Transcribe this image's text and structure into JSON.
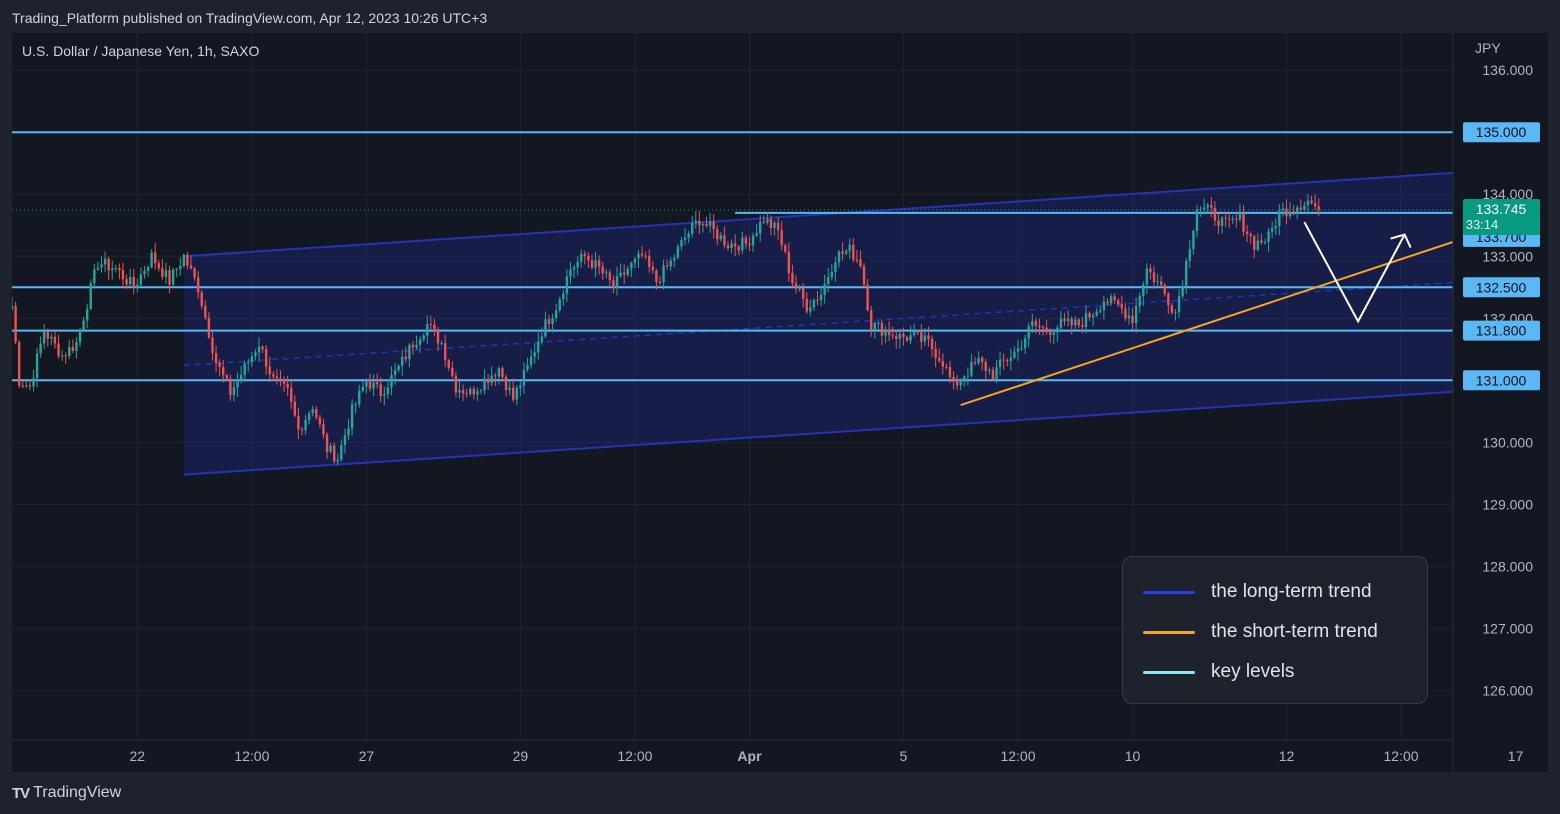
{
  "header": {
    "text": "Trading_Platform published on TradingView.com, Apr 12, 2023 10:26 UTC+3"
  },
  "footer": {
    "logo": "TV",
    "brand": "TradingView"
  },
  "chart_data": {
    "type": "candlestick",
    "symbol": "U.S. Dollar / Japanese Yen, 1h, SAXO",
    "currency": "JPY",
    "ylim": [
      125.2,
      136.6
    ],
    "y_ticks": [
      "136.000",
      "135.000",
      "134.000",
      "133.000",
      "132.000",
      "131.000",
      "130.000",
      "129.000",
      "128.000",
      "127.000",
      "126.000"
    ],
    "x_ticks": [
      {
        "label": "22",
        "i": 35,
        "bold": false
      },
      {
        "label": "12:00",
        "i": 67,
        "bold": false
      },
      {
        "label": "27",
        "i": 99,
        "bold": false
      },
      {
        "label": "29",
        "i": 142,
        "bold": false
      },
      {
        "label": "12:00",
        "i": 174,
        "bold": false
      },
      {
        "label": "Apr",
        "i": 206,
        "bold": true
      },
      {
        "label": "5",
        "i": 249,
        "bold": false
      },
      {
        "label": "12:00",
        "i": 281,
        "bold": false
      },
      {
        "label": "10",
        "i": 313,
        "bold": false
      },
      {
        "label": "12",
        "i": 356,
        "bold": false
      },
      {
        "label": "12:00",
        "i": 388,
        "bold": false
      },
      {
        "label": "17",
        "i": 420,
        "bold": false
      }
    ],
    "key_levels": [
      {
        "value": 135.0,
        "label": "135.000"
      },
      {
        "value": 133.7,
        "label": "133.700"
      },
      {
        "value": 132.5,
        "label": "132.500"
      },
      {
        "value": 131.8,
        "label": "131.800"
      },
      {
        "value": 131.0,
        "label": "131.000"
      }
    ],
    "last_price": {
      "value": 133.745,
      "label": "133.745",
      "countdown": "33:14"
    },
    "channel": {
      "upper": [
        [
          48,
          133.0
        ],
        [
          417,
          134.4
        ]
      ],
      "lower": [
        [
          48,
          129.48
        ],
        [
          417,
          130.87
        ]
      ],
      "mid": [
        [
          48,
          131.24
        ],
        [
          417,
          132.63
        ]
      ]
    },
    "short_trend": [
      [
        265,
        130.6
      ],
      [
        414,
        133.45
      ]
    ],
    "projection": [
      [
        361,
        133.55
      ],
      [
        376,
        131.95
      ],
      [
        389,
        133.35
      ]
    ],
    "anchors": [
      [
        0,
        132.2
      ],
      [
        2,
        131.0
      ],
      [
        5,
        130.9
      ],
      [
        9,
        131.8
      ],
      [
        14,
        131.4
      ],
      [
        18,
        131.6
      ],
      [
        24,
        132.9
      ],
      [
        29,
        132.8
      ],
      [
        34,
        132.5
      ],
      [
        39,
        133.0
      ],
      [
        44,
        132.6
      ],
      [
        48,
        133.0
      ],
      [
        52,
        132.5
      ],
      [
        57,
        131.3
      ],
      [
        61,
        130.8
      ],
      [
        65,
        131.2
      ],
      [
        69,
        131.6
      ],
      [
        73,
        131.0
      ],
      [
        77,
        130.8
      ],
      [
        80,
        130.2
      ],
      [
        84,
        130.6
      ],
      [
        88,
        129.9
      ],
      [
        91,
        129.75
      ],
      [
        95,
        130.5
      ],
      [
        99,
        131.0
      ],
      [
        103,
        130.8
      ],
      [
        108,
        131.2
      ],
      [
        112,
        131.6
      ],
      [
        116,
        131.9
      ],
      [
        120,
        131.6
      ],
      [
        124,
        130.9
      ],
      [
        128,
        130.8
      ],
      [
        132,
        131.0
      ],
      [
        136,
        131.2
      ],
      [
        140,
        130.7
      ],
      [
        144,
        131.2
      ],
      [
        148,
        131.8
      ],
      [
        152,
        132.2
      ],
      [
        156,
        132.8
      ],
      [
        160,
        133.0
      ],
      [
        164,
        132.8
      ],
      [
        168,
        132.5
      ],
      [
        172,
        132.8
      ],
      [
        176,
        133.0
      ],
      [
        180,
        132.6
      ],
      [
        184,
        132.9
      ],
      [
        188,
        133.3
      ],
      [
        192,
        133.6
      ],
      [
        196,
        133.4
      ],
      [
        200,
        133.2
      ],
      [
        205,
        133.2
      ],
      [
        210,
        133.6
      ],
      [
        214,
        133.4
      ],
      [
        218,
        132.6
      ],
      [
        222,
        132.2
      ],
      [
        226,
        132.4
      ],
      [
        230,
        133.0
      ],
      [
        234,
        133.1
      ],
      [
        237,
        132.9
      ],
      [
        240,
        131.9
      ],
      [
        244,
        131.8
      ],
      [
        248,
        131.7
      ],
      [
        252,
        131.7
      ],
      [
        256,
        131.6
      ],
      [
        260,
        131.3
      ],
      [
        263,
        130.9
      ],
      [
        266,
        131.1
      ],
      [
        270,
        131.3
      ],
      [
        274,
        131.1
      ],
      [
        277,
        131.3
      ],
      [
        281,
        131.5
      ],
      [
        285,
        131.9
      ],
      [
        289,
        131.8
      ],
      [
        293,
        131.9
      ],
      [
        298,
        131.9
      ],
      [
        302,
        132.1
      ],
      [
        305,
        132.3
      ],
      [
        309,
        132.2
      ],
      [
        313,
        132.0
      ],
      [
        317,
        132.8
      ],
      [
        321,
        132.5
      ],
      [
        325,
        132.1
      ],
      [
        328,
        132.9
      ],
      [
        331,
        133.8
      ],
      [
        335,
        133.7
      ],
      [
        339,
        133.5
      ],
      [
        343,
        133.6
      ],
      [
        347,
        133.2
      ],
      [
        351,
        133.3
      ],
      [
        354,
        133.7
      ],
      [
        358,
        133.8
      ],
      [
        362,
        133.9
      ],
      [
        365,
        133.75
      ]
    ],
    "legend": [
      {
        "label": "the long-term trend",
        "color": "#2a3ee8"
      },
      {
        "label": "the short-term trend",
        "color": "#f7a427"
      },
      {
        "label": "key levels",
        "color": "#8ee4f5"
      }
    ]
  },
  "colors": {
    "up": "#26a69a",
    "down": "#ef5350",
    "key_level": "#5bb8f5",
    "channel": "#2633b8",
    "price_bg": "#089981"
  }
}
